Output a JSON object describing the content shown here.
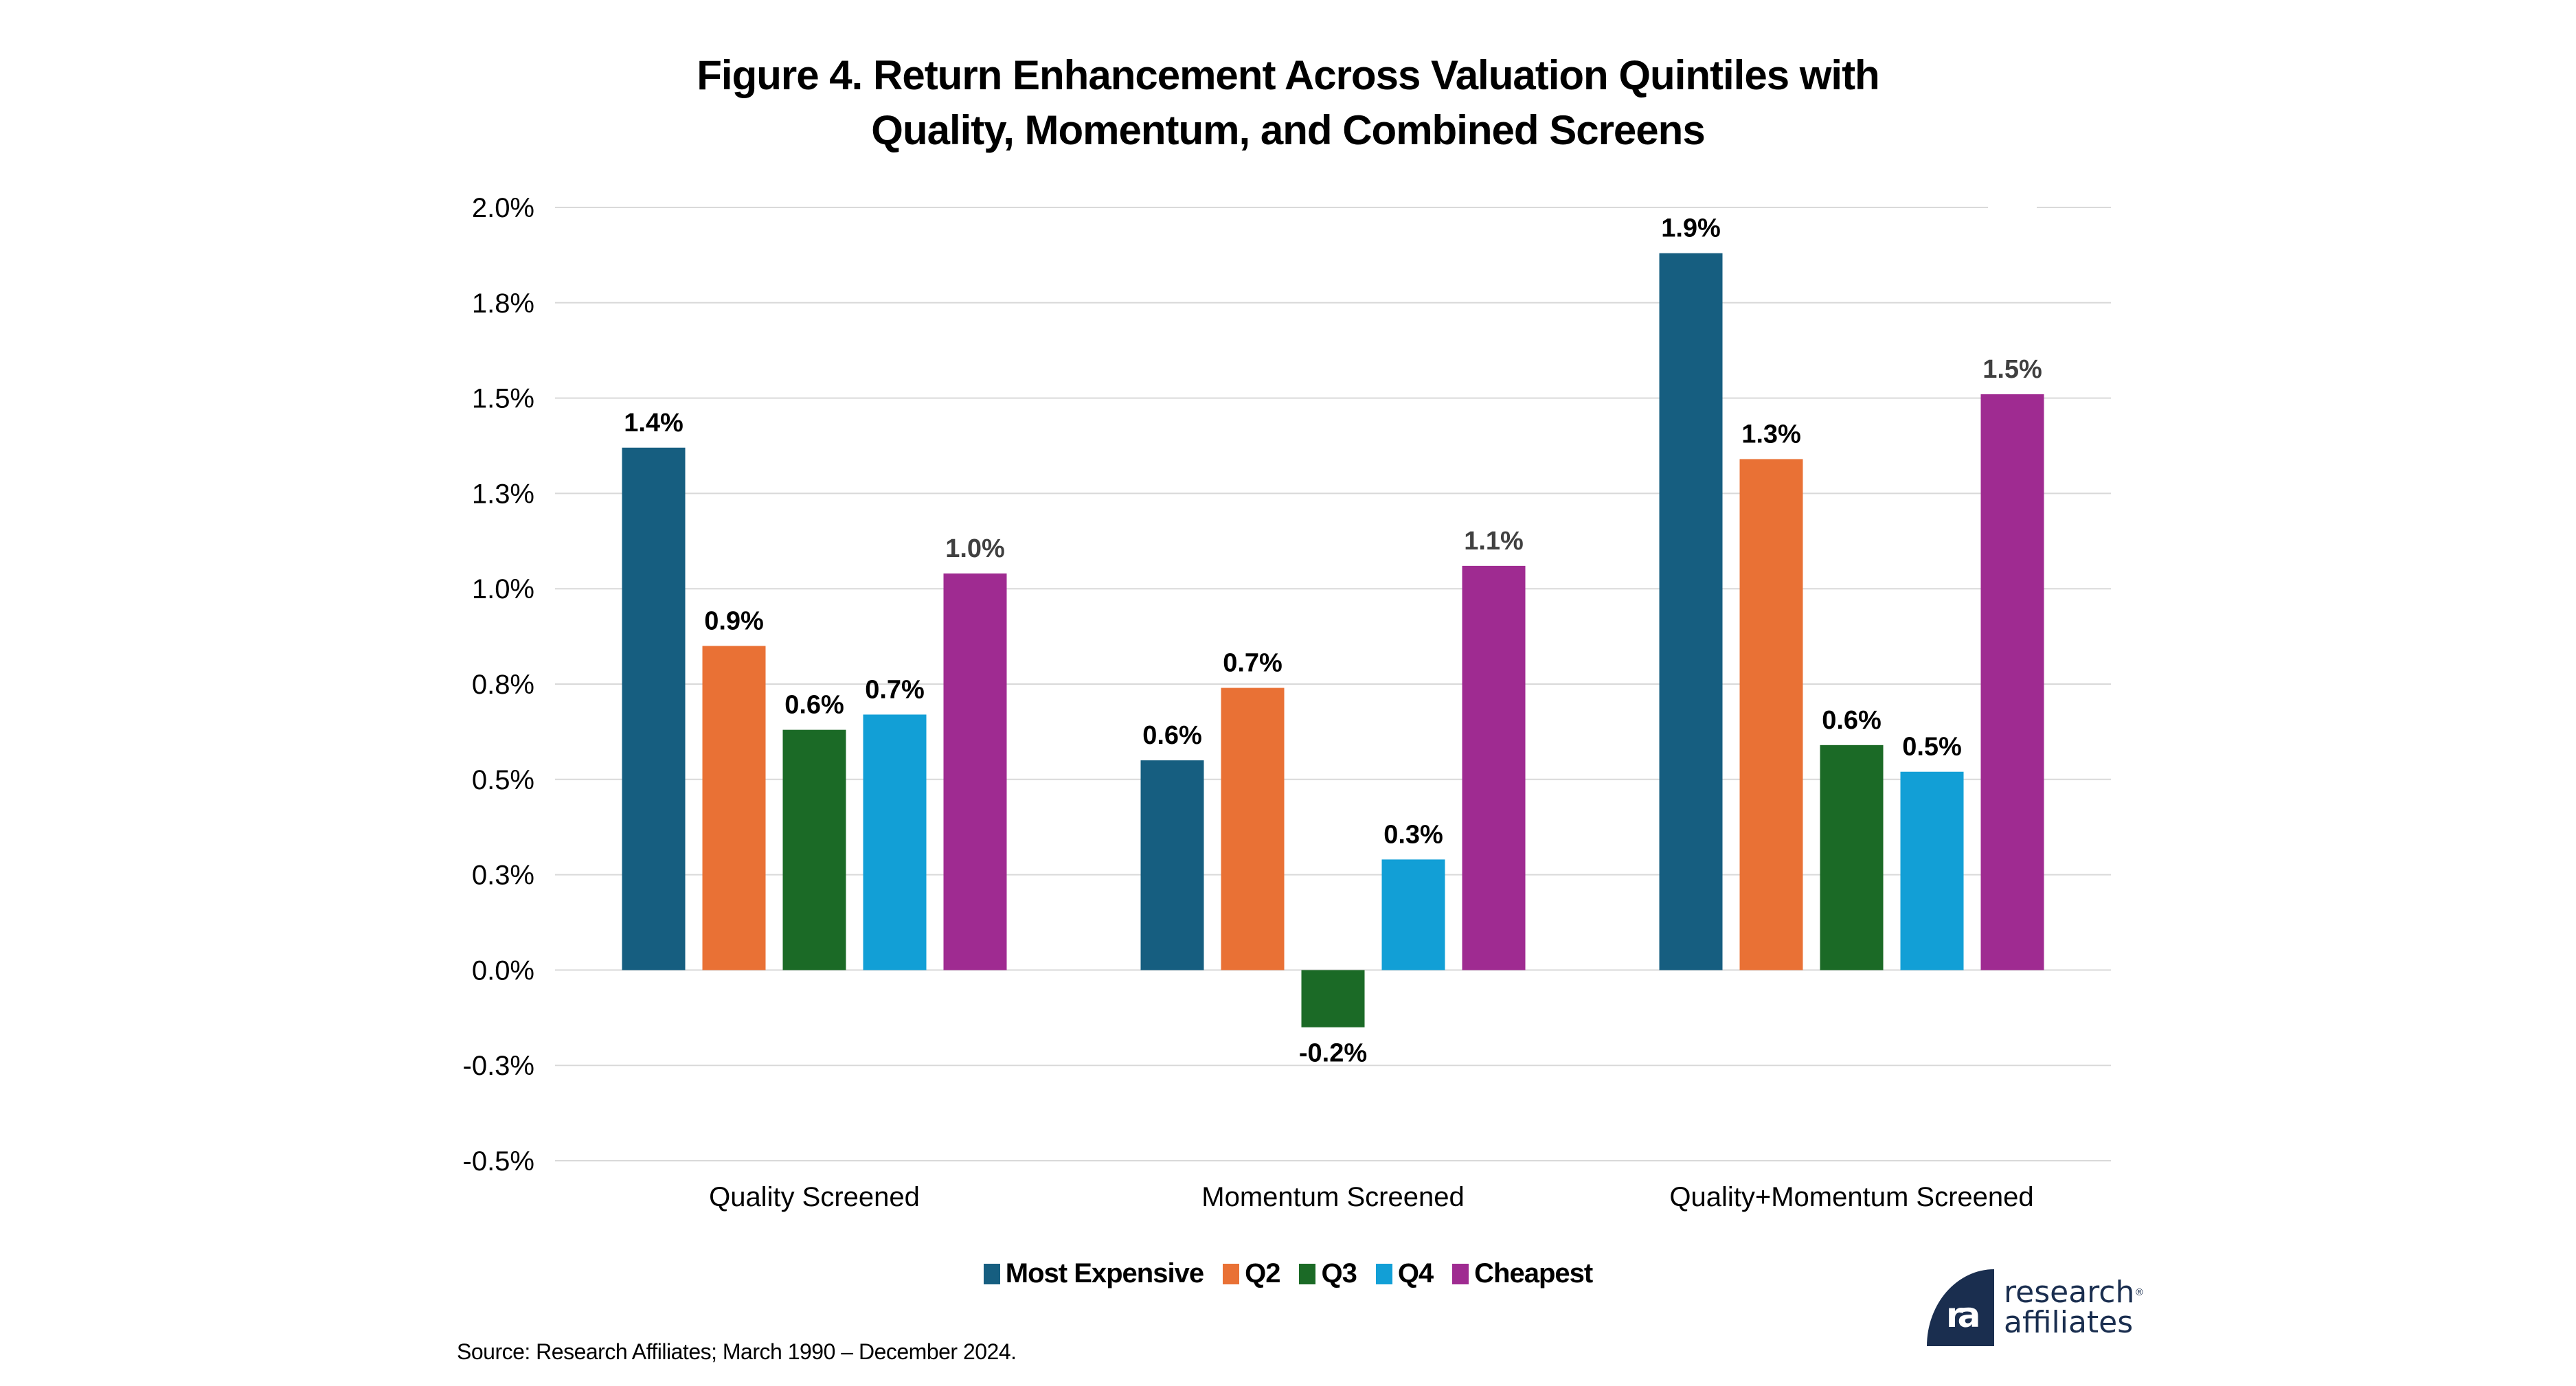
{
  "chart_data": {
    "type": "bar",
    "title": "Figure 4. Return Enhancement Across Valuation Quintiles with Quality, Momentum, and Combined Screens",
    "title_lines": [
      "Figure 4. Return Enhancement Across Valuation Quintiles with",
      "Quality, Momentum, and Combined Screens"
    ],
    "xlabel": "",
    "ylabel": "",
    "categories": [
      "Quality Screened",
      "Momentum Screened",
      "Quality+Momentum Screened"
    ],
    "ylim": [
      -0.5,
      2.0
    ],
    "yticks": [
      2.0,
      1.75,
      1.5,
      1.25,
      1.0,
      0.75,
      0.5,
      0.25,
      0.0,
      -0.25,
      -0.5
    ],
    "ytick_labels": [
      "2.0%",
      "1.8%",
      "1.5%",
      "1.3%",
      "1.0%",
      "0.8%",
      "0.5%",
      "0.3%",
      "0.0%",
      "-0.3%",
      "-0.5%"
    ],
    "grid": true,
    "legend_position": "bottom",
    "series": [
      {
        "name": "Most Expensive",
        "color": "#165E80",
        "label_color": "#000000",
        "values": [
          1.37,
          0.55,
          1.88
        ],
        "labels": [
          "1.4%",
          "0.6%",
          "1.9%"
        ]
      },
      {
        "name": "Q2",
        "color": "#E97135",
        "label_color": "#000000",
        "values": [
          0.85,
          0.74,
          1.34
        ],
        "labels": [
          "0.9%",
          "0.7%",
          "1.3%"
        ]
      },
      {
        "name": "Q3",
        "color": "#1B6A26",
        "label_color": "#000000",
        "values": [
          0.63,
          -0.15,
          0.59
        ],
        "labels": [
          "0.6%",
          "-0.2%",
          "0.6%"
        ]
      },
      {
        "name": "Q4",
        "color": "#129FD6",
        "label_color": "#000000",
        "values": [
          0.67,
          0.29,
          0.52
        ],
        "labels": [
          "0.7%",
          "0.3%",
          "0.5%"
        ]
      },
      {
        "name": "Cheapest",
        "color": "#9F2B91",
        "label_color": "#404040",
        "values": [
          1.04,
          1.06,
          1.51
        ],
        "labels": [
          "1.0%",
          "1.1%",
          "1.5%"
        ]
      }
    ]
  },
  "footer": {
    "source": "Source: Research Affiliates; March 1990 – December 2024."
  },
  "logo": {
    "mark": "ra",
    "line1": "research",
    "registered": "®",
    "line2": "affiliates",
    "color": "#1a2e4f"
  }
}
